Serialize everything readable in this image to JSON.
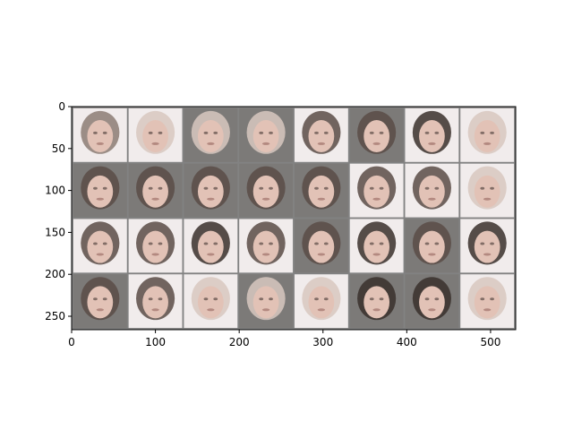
{
  "chart_data": {
    "type": "image-grid",
    "title": "",
    "xlabel": "",
    "ylabel": "",
    "xlim": [
      0,
      530
    ],
    "ylim": [
      266,
      0
    ],
    "xticks": [
      0,
      100,
      200,
      300,
      400,
      500
    ],
    "yticks": [
      0,
      50,
      100,
      150,
      200,
      250
    ],
    "grid": false,
    "image_grid": {
      "rows": 4,
      "cols": 8,
      "tile_size": 64,
      "padding": 2,
      "description": "generated face samples",
      "tiles": [
        {
          "bg": "light",
          "hair": "medium"
        },
        {
          "bg": "light",
          "hair": "light"
        },
        {
          "bg": "dark",
          "hair": "light"
        },
        {
          "bg": "dark",
          "hair": "light"
        },
        {
          "bg": "light",
          "hair": "dark"
        },
        {
          "bg": "dark",
          "hair": "dark"
        },
        {
          "bg": "light",
          "hair": "black"
        },
        {
          "bg": "light",
          "hair": "light"
        },
        {
          "bg": "dark",
          "hair": "dark"
        },
        {
          "bg": "dark",
          "hair": "dark"
        },
        {
          "bg": "dark",
          "hair": "dark"
        },
        {
          "bg": "dark",
          "hair": "dark"
        },
        {
          "bg": "dark",
          "hair": "dark"
        },
        {
          "bg": "light",
          "hair": "dark"
        },
        {
          "bg": "light",
          "hair": "dark"
        },
        {
          "bg": "light",
          "hair": "light"
        },
        {
          "bg": "light",
          "hair": "dark"
        },
        {
          "bg": "light",
          "hair": "dark"
        },
        {
          "bg": "light",
          "hair": "black"
        },
        {
          "bg": "light",
          "hair": "dark"
        },
        {
          "bg": "dark",
          "hair": "dark"
        },
        {
          "bg": "light",
          "hair": "black"
        },
        {
          "bg": "dark",
          "hair": "dark"
        },
        {
          "bg": "light",
          "hair": "black"
        },
        {
          "bg": "dark",
          "hair": "dark"
        },
        {
          "bg": "light",
          "hair": "dark"
        },
        {
          "bg": "light",
          "hair": "light"
        },
        {
          "bg": "dark",
          "hair": "light"
        },
        {
          "bg": "light",
          "hair": "light"
        },
        {
          "bg": "dark",
          "hair": "black"
        },
        {
          "bg": "dark",
          "hair": "black"
        },
        {
          "bg": "light",
          "hair": "light"
        }
      ]
    }
  },
  "colors": {
    "grid_border": "#828282",
    "bg_light": "#f1ecec",
    "bg_dark": "#7c7a78",
    "skin": "#e2c2b6",
    "hair_light": "#d8c8c0",
    "hair_medium": "#8c7c74",
    "hair_dark": "#5a4c46",
    "hair_black": "#3a302c",
    "axis": "#000000"
  }
}
